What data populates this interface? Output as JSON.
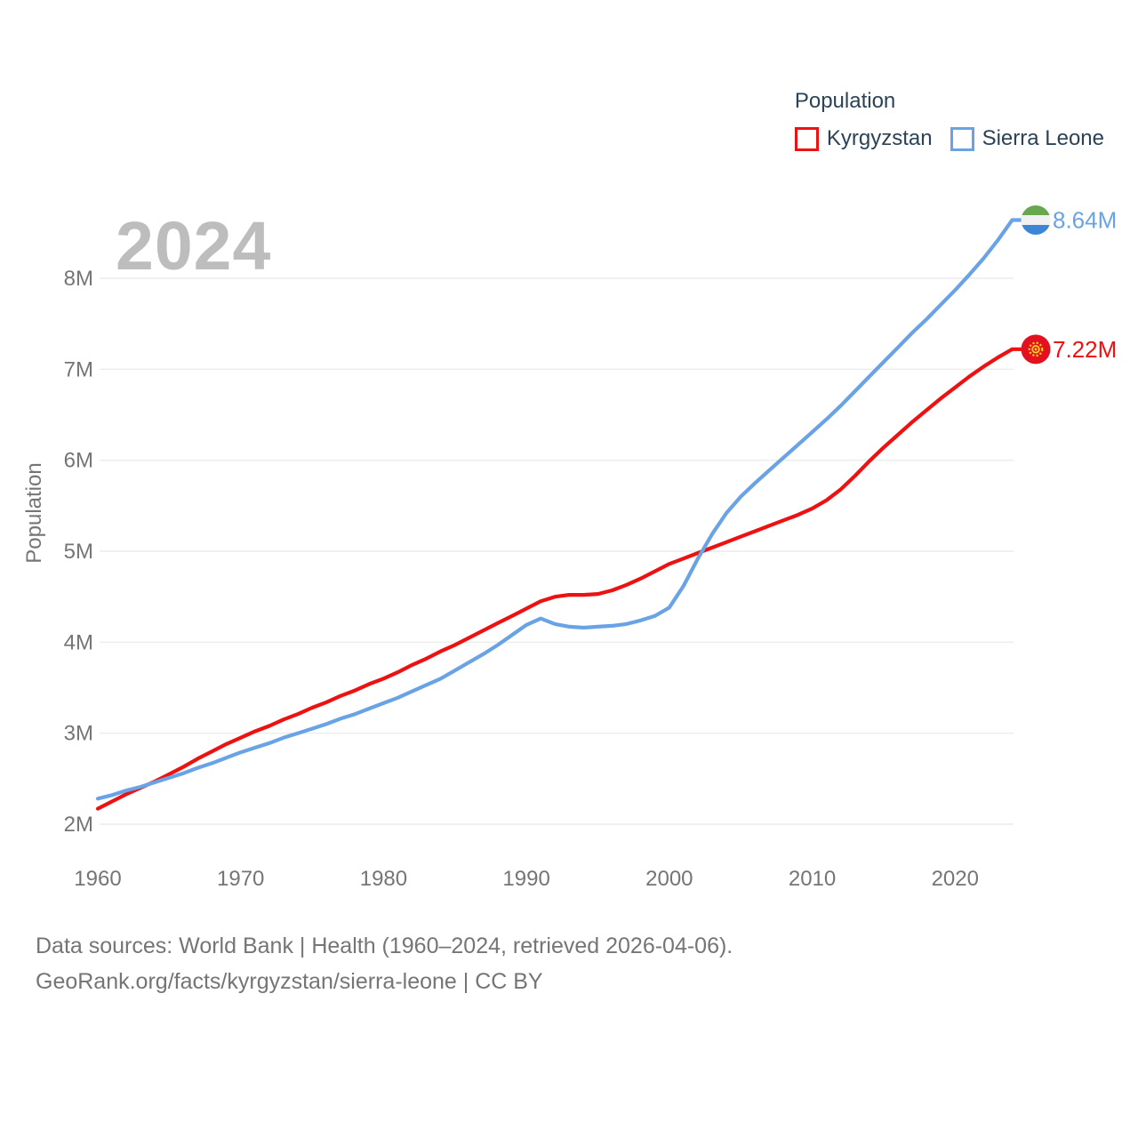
{
  "watermark": "2024",
  "legend": {
    "title": "Population",
    "items": [
      {
        "label": "Kyrgyzstan",
        "color": "#ee1111"
      },
      {
        "label": "Sierra Leone",
        "color": "#69a3e6"
      }
    ]
  },
  "axes": {
    "y_title": "Population",
    "y_ticks": [
      "2M",
      "3M",
      "4M",
      "5M",
      "6M",
      "7M",
      "8M"
    ],
    "y_tick_values": [
      2,
      3,
      4,
      5,
      6,
      7,
      8
    ],
    "x_ticks": [
      1960,
      1970,
      1980,
      1990,
      2000,
      2010,
      2020
    ]
  },
  "footer": {
    "line1": "Data sources: World Bank | Health (1960–2024, retrieved 2026-04-06).",
    "line2": "GeoRank.org/facts/kyrgyzstan/sierra-leone | CC BY"
  },
  "chart_data": {
    "type": "line",
    "title": "Population",
    "xlabel": "",
    "ylabel": "Population",
    "x_range": [
      1960,
      2024
    ],
    "ylim_millions": [
      2,
      8.64
    ],
    "grid": true,
    "legend_position": "top-right",
    "watermark_year": "2024",
    "x": [
      1960,
      1961,
      1962,
      1963,
      1964,
      1965,
      1966,
      1967,
      1968,
      1969,
      1970,
      1971,
      1972,
      1973,
      1974,
      1975,
      1976,
      1977,
      1978,
      1979,
      1980,
      1981,
      1982,
      1983,
      1984,
      1985,
      1986,
      1987,
      1988,
      1989,
      1990,
      1991,
      1992,
      1993,
      1994,
      1995,
      1996,
      1997,
      1998,
      1999,
      2000,
      2001,
      2002,
      2003,
      2004,
      2005,
      2006,
      2007,
      2008,
      2009,
      2010,
      2011,
      2012,
      2013,
      2014,
      2015,
      2016,
      2017,
      2018,
      2019,
      2020,
      2021,
      2022,
      2023,
      2024
    ],
    "series": [
      {
        "name": "Kyrgyzstan",
        "color": "#ee1111",
        "end_label": "7.22M",
        "end_value_millions": 7.22,
        "flag": "kyrgyzstan",
        "values_millions": [
          2.17,
          2.25,
          2.33,
          2.4,
          2.47,
          2.55,
          2.63,
          2.72,
          2.8,
          2.88,
          2.95,
          3.02,
          3.08,
          3.15,
          3.21,
          3.28,
          3.34,
          3.41,
          3.47,
          3.54,
          3.6,
          3.67,
          3.75,
          3.82,
          3.9,
          3.97,
          4.05,
          4.13,
          4.21,
          4.29,
          4.37,
          4.45,
          4.5,
          4.52,
          4.52,
          4.53,
          4.57,
          4.63,
          4.7,
          4.78,
          4.86,
          4.92,
          4.98,
          5.04,
          5.1,
          5.16,
          5.22,
          5.28,
          5.34,
          5.4,
          5.47,
          5.56,
          5.68,
          5.83,
          5.99,
          6.14,
          6.28,
          6.42,
          6.55,
          6.68,
          6.8,
          6.92,
          7.03,
          7.13,
          7.22
        ]
      },
      {
        "name": "Sierra Leone",
        "color": "#69a3e6",
        "end_label": "8.64M",
        "end_value_millions": 8.64,
        "flag": "sierra_leone",
        "values_millions": [
          2.28,
          2.32,
          2.37,
          2.41,
          2.46,
          2.51,
          2.56,
          2.62,
          2.67,
          2.73,
          2.79,
          2.84,
          2.89,
          2.95,
          3.0,
          3.05,
          3.1,
          3.16,
          3.21,
          3.27,
          3.33,
          3.39,
          3.46,
          3.53,
          3.6,
          3.69,
          3.78,
          3.87,
          3.97,
          4.08,
          4.19,
          4.26,
          4.2,
          4.17,
          4.16,
          4.17,
          4.18,
          4.2,
          4.24,
          4.29,
          4.38,
          4.62,
          4.92,
          5.19,
          5.42,
          5.6,
          5.75,
          5.89,
          6.03,
          6.17,
          6.31,
          6.45,
          6.6,
          6.76,
          6.92,
          7.08,
          7.24,
          7.4,
          7.55,
          7.71,
          7.87,
          8.04,
          8.22,
          8.42,
          8.64
        ]
      }
    ],
    "flag_colors": {
      "kyrgyzstan": {
        "field": "#e3101f",
        "sun": "#ffd21e"
      },
      "sierra_leone": {
        "green": "#67a74f",
        "white": "#f1f1f1",
        "blue": "#3c86d8"
      }
    },
    "style": {
      "gridline_color": "#ececec",
      "tick_color": "#757575",
      "watermark_color": "#bdbdbd",
      "line_width": 4.2
    }
  }
}
